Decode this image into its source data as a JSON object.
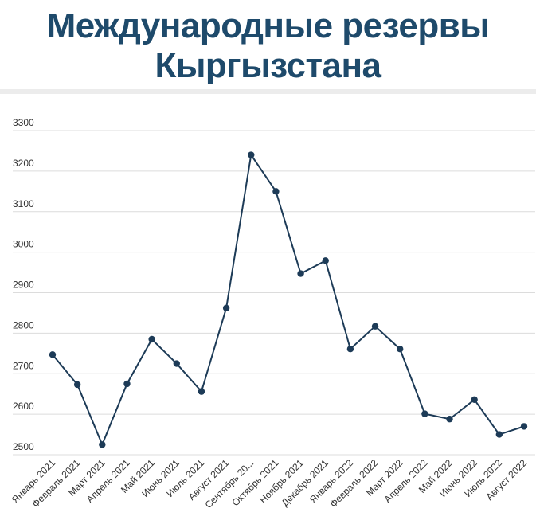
{
  "header": {
    "title_line1": "Международные резервы",
    "title_line2": "Кыргызстана"
  },
  "colors": {
    "title": "#1e4a6b",
    "series": "#1d3b57",
    "grid": "#dcdcdc"
  },
  "chart_data": {
    "type": "line",
    "title": "Международные резервы Кыргызстана",
    "xlabel": "",
    "ylabel": "",
    "ylim": [
      2500,
      3300
    ],
    "yticks": [
      2500,
      2600,
      2700,
      2800,
      2900,
      3000,
      3100,
      3200,
      3300
    ],
    "grid": true,
    "categories": [
      "Январь 2021",
      "Февраль 2021",
      "Март 2021",
      "Апрель 2021",
      "Май 2021",
      "Июнь 2021",
      "Июль 2021",
      "Август 2021",
      "Сентябрь 20...",
      "Октябрь 2021",
      "Ноябрь 2021",
      "Декабрь 2021",
      "Январь 2022",
      "Февраль 2022",
      "Март 2022",
      "Апрель 2022",
      "Май 2022",
      "Июнь 2022",
      "Июль 2022",
      "Август 2022"
    ],
    "series": [
      {
        "values": [
          2747,
          2673,
          2525,
          2675,
          2785,
          2725,
          2656,
          2862,
          3240,
          3150,
          2947,
          2979,
          2761,
          2817,
          2761,
          2601,
          2588,
          2636,
          2550,
          2570
        ]
      }
    ]
  }
}
